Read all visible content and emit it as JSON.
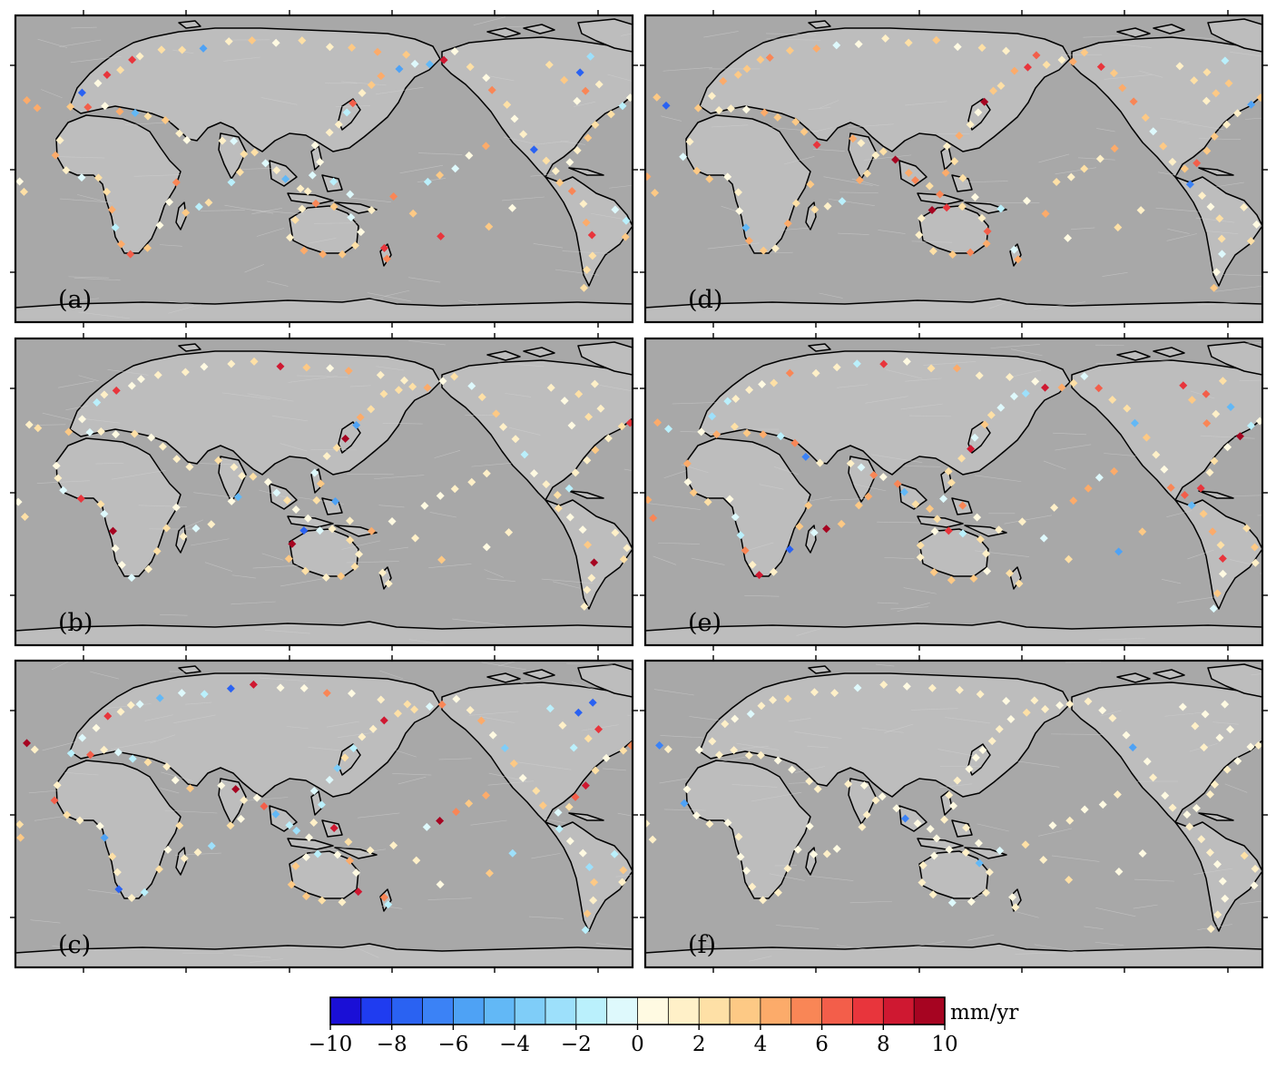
{
  "panels": [
    {
      "label": "(a)",
      "seed": 11
    },
    {
      "label": "(d)",
      "seed": 23
    },
    {
      "label": "(b)",
      "seed": 37
    },
    {
      "label": "(e)",
      "seed": 53
    },
    {
      "label": "(c)",
      "seed": 71
    },
    {
      "label": "(f)",
      "seed": 97
    }
  ],
  "colorbar": {
    "min": -10,
    "max": 10,
    "unit": "mm/yr",
    "tick_labels": [
      "−10",
      "−8",
      "−6",
      "−4",
      "−2",
      "0",
      "2",
      "4",
      "6",
      "8",
      "10"
    ],
    "colors": [
      "#1a0fd6",
      "#1f3cf0",
      "#2a62f2",
      "#3b82f6",
      "#4ea2f5",
      "#62b8f6",
      "#7fcdf8",
      "#9de0fb",
      "#baf0fc",
      "#def9fc",
      "#fffae2",
      "#fff0c8",
      "#fee0a6",
      "#fdc985",
      "#fcab6a",
      "#f98656",
      "#f35e4a",
      "#e8353c",
      "#cf1831",
      "#a60421"
    ]
  },
  "map_colors": {
    "land": "#bdbdbd",
    "ocean": "#a8a8a8",
    "coastline": "#000000"
  }
}
